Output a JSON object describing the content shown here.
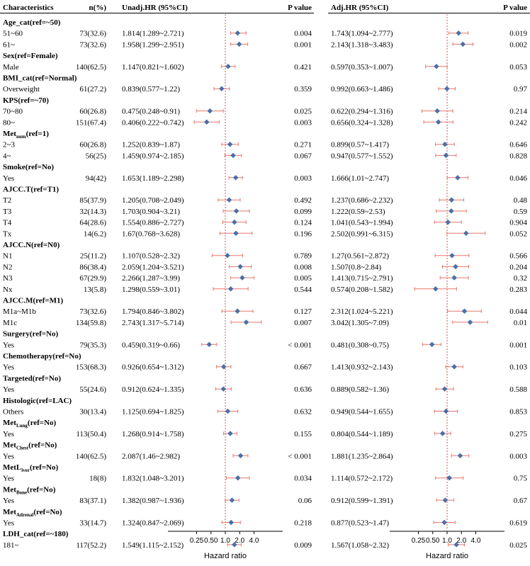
{
  "colors": {
    "marker": "#4a6fa5",
    "ci_line": "#e8776a",
    "ref_line": "#b0322a",
    "rule": "#000000"
  },
  "chart_data": {
    "type": "forest",
    "headers": {
      "characteristics": "Characteristics",
      "n": "n(%)",
      "unadj": "Unadj.HR (95%CI)",
      "p_left": "P value",
      "adj": "Adj.HR (95%CI)",
      "p_right": "P value"
    },
    "x_axis": {
      "label": "Hazard ratio",
      "scale": "log2",
      "ticks": [
        "0.25",
        "0.50",
        "1.0",
        "2.0",
        "4.0"
      ],
      "tick_values": [
        0.25,
        0.5,
        1,
        2,
        4
      ],
      "reference": 1
    },
    "rows": [
      {
        "type": "header",
        "label": "Age_cat(ref=~50)"
      },
      {
        "type": "data",
        "label": "51~60",
        "n": "73(32.6)",
        "unadj_text": "1.814(1.289~2.721)",
        "unadj_p": "0.004",
        "adj_text": "1.743(1.094~2.777)",
        "adj_p": "0.019",
        "unadj": [
          1.814,
          1.289,
          2.721
        ],
        "adj": [
          1.743,
          1.094,
          2.777
        ]
      },
      {
        "type": "data",
        "label": "61~",
        "n": "73(32.6)",
        "unadj_text": "1.958(1.299~2.951)",
        "unadj_p": "0.001",
        "adj_text": "2.143(1.318~3.483)",
        "adj_p": "0.002",
        "unadj": [
          1.958,
          1.299,
          2.951
        ],
        "adj": [
          2.143,
          1.318,
          3.483
        ]
      },
      {
        "type": "header",
        "label": "Sex(ref=Female)"
      },
      {
        "type": "data",
        "label": "Male",
        "n": "140(62.5)",
        "unadj_text": "1.147(0.821~1.602)",
        "unadj_p": "0.421",
        "adj_text": "0.597(0.353~1.007)",
        "adj_p": "0.053",
        "unadj": [
          1.147,
          0.821,
          1.602
        ],
        "adj": [
          0.597,
          0.353,
          1.007
        ]
      },
      {
        "type": "header",
        "label": "BMI_cat(ref=Normal)"
      },
      {
        "type": "data",
        "label": "Overweight",
        "n": "61(27.2)",
        "unadj_text": "0.839(0.577~1.22)",
        "unadj_p": "0.359",
        "adj_text": "0.992(0.663~1.486)",
        "adj_p": "0.97",
        "unadj": [
          0.839,
          0.577,
          1.22
        ],
        "adj": [
          0.992,
          0.663,
          1.486
        ]
      },
      {
        "type": "header",
        "label": "KPS(ref=~70)"
      },
      {
        "type": "data",
        "label": "70~80",
        "n": "60(26.8)",
        "unadj_text": "0.475(0.248~0.91)",
        "unadj_p": "0.025",
        "adj_text": "0.622(0.294~1.316)",
        "adj_p": "0.214",
        "unadj": [
          0.475,
          0.248,
          0.91
        ],
        "adj": [
          0.622,
          0.294,
          1.316
        ]
      },
      {
        "type": "data",
        "label": "80~",
        "n": "151(67.4)",
        "unadj_text": "0.406(0.222~0.742)",
        "unadj_p": "0.003",
        "adj_text": "0.656(0.324~1.328)",
        "adj_p": "0.242",
        "unadj": [
          0.406,
          0.222,
          0.742
        ],
        "adj": [
          0.656,
          0.324,
          1.328
        ]
      },
      {
        "type": "header",
        "label": "Met",
        "sub": "num",
        "suffix": "(ref=1)"
      },
      {
        "type": "data",
        "label": "2~3",
        "n": "60(26.8)",
        "unadj_text": "1.252(0.839~1.87)",
        "unadj_p": "0.271",
        "adj_text": "0.899(0.57~1.417)",
        "adj_p": "0.646",
        "unadj": [
          1.252,
          0.839,
          1.87
        ],
        "adj": [
          0.899,
          0.57,
          1.417
        ]
      },
      {
        "type": "data",
        "label": "4~",
        "n": "56(25)",
        "unadj_text": "1.459(0.974~2.185)",
        "unadj_p": "0.067",
        "adj_text": "0.947(0.577~1.552)",
        "adj_p": "0.828",
        "unadj": [
          1.459,
          0.974,
          2.185
        ],
        "adj": [
          0.947,
          0.577,
          1.552
        ]
      },
      {
        "type": "header",
        "label": "Smoke(ref=No)"
      },
      {
        "type": "data",
        "label": "Yes",
        "n": "94(42)",
        "unadj_text": "1.653(1.189~2.298)",
        "unadj_p": "0.003",
        "adj_text": "1.666(1.01~2.747)",
        "adj_p": "0.046",
        "unadj": [
          1.653,
          1.189,
          2.298
        ],
        "adj": [
          1.666,
          1.01,
          2.747
        ]
      },
      {
        "type": "header",
        "label": "AJCC.T(ref=T1)"
      },
      {
        "type": "data",
        "label": "T2",
        "n": "85(37.9)",
        "unadj_text": "1.205(0.708~2.049)",
        "unadj_p": "0.492",
        "adj_text": "1.237(0.686~2.232)",
        "adj_p": "0.48",
        "unadj": [
          1.205,
          0.708,
          2.049
        ],
        "adj": [
          1.237,
          0.686,
          2.232
        ]
      },
      {
        "type": "data",
        "label": "T3",
        "n": "32(14.3)",
        "unadj_text": "1.703(0.904~3.21)",
        "unadj_p": "0.099",
        "adj_text": "1.222(0.59~2.53)",
        "adj_p": "0.59",
        "unadj": [
          1.703,
          0.904,
          3.21
        ],
        "adj": [
          1.222,
          0.59,
          2.53
        ]
      },
      {
        "type": "data",
        "label": "T4",
        "n": "64(28.6)",
        "unadj_text": "1.554(0.886~2.727)",
        "unadj_p": "0.124",
        "adj_text": "1.041(0.543~1.994)",
        "adj_p": "0.904",
        "unadj": [
          1.554,
          0.886,
          2.727
        ],
        "adj": [
          1.041,
          0.543,
          1.994
        ]
      },
      {
        "type": "data",
        "label": "Tx",
        "n": "14(6.2)",
        "unadj_text": "1.67(0.768~3.628)",
        "unadj_p": "0.196",
        "adj_text": "2.502(0.991~6.315)",
        "adj_p": "0.052",
        "unadj": [
          1.67,
          0.768,
          3.628
        ],
        "adj": [
          2.502,
          0.991,
          6.315
        ]
      },
      {
        "type": "header",
        "label": "AJCC.N(ref=N0)"
      },
      {
        "type": "data",
        "label": "N1",
        "n": "25(11.2)",
        "unadj_text": "1.107(0.528~2.32)",
        "unadj_p": "0.789",
        "adj_text": "1.27(0.561~2.872)",
        "adj_p": "0.566",
        "unadj": [
          1.107,
          0.528,
          2.32
        ],
        "adj": [
          1.27,
          0.561,
          2.872
        ]
      },
      {
        "type": "data",
        "label": "N2",
        "n": "86(38.4)",
        "unadj_text": "2.059(1.204~3.521)",
        "unadj_p": "0.008",
        "adj_text": "1.507(0.8~2.84)",
        "adj_p": "0.204",
        "unadj": [
          2.059,
          1.204,
          3.521
        ],
        "adj": [
          1.507,
          0.8,
          2.84
        ]
      },
      {
        "type": "data",
        "label": "N3",
        "n": "67(29.9)",
        "unadj_text": "2.266(1.287~3.99)",
        "unadj_p": "0.005",
        "adj_text": "1.413(0.715~2.791)",
        "adj_p": "0.32",
        "unadj": [
          2.266,
          1.287,
          3.99
        ],
        "adj": [
          1.413,
          0.715,
          2.791
        ]
      },
      {
        "type": "data",
        "label": "Nx",
        "n": "13(5.8)",
        "unadj_text": "1.298(0.559~3.01)",
        "unadj_p": "0.544",
        "adj_text": "0.574(0.208~1.582)",
        "adj_p": "0.283",
        "unadj": [
          1.298,
          0.559,
          3.01
        ],
        "adj": [
          0.574,
          0.208,
          1.582
        ]
      },
      {
        "type": "header",
        "label": "AJCC.M(ref=M1)"
      },
      {
        "type": "data",
        "label": "M1a~M1b",
        "n": "73(32.6)",
        "unadj_text": "1.794(0.846~3.802)",
        "unadj_p": "0.127",
        "adj_text": "2.312(1.024~5.221)",
        "adj_p": "0.044",
        "unadj": [
          1.794,
          0.846,
          3.802
        ],
        "adj": [
          2.312,
          1.024,
          5.221
        ]
      },
      {
        "type": "data",
        "label": "M1c",
        "n": "134(59.8)",
        "unadj_text": "2.743(1.317~5.714)",
        "unadj_p": "0.007",
        "adj_text": "3.042(1.305~7.09)",
        "adj_p": "0.01",
        "unadj": [
          2.743,
          1.317,
          5.714
        ],
        "adj": [
          3.042,
          1.305,
          7.09
        ]
      },
      {
        "type": "header",
        "label": "Surgery(ref=No)"
      },
      {
        "type": "data",
        "label": "Yes",
        "n": "79(35.3)",
        "unadj_text": "0.459(0.319~0.66)",
        "unadj_p": "< 0.001",
        "adj_text": "0.481(0.308~0.75)",
        "adj_p": "0.001",
        "unadj": [
          0.459,
          0.319,
          0.66
        ],
        "adj": [
          0.481,
          0.308,
          0.75
        ]
      },
      {
        "type": "header",
        "label": "Chemotherapy(ref=No)"
      },
      {
        "type": "data",
        "label": "Yes",
        "n": "153(68.3)",
        "unadj_text": "0.926(0.654~1.312)",
        "unadj_p": "0.667",
        "adj_text": "1.413(0.932~2.143)",
        "adj_p": "0.103",
        "unadj": [
          0.926,
          0.654,
          1.312
        ],
        "adj": [
          1.413,
          0.932,
          2.143
        ]
      },
      {
        "type": "header",
        "label": "Targeted(ref=No)"
      },
      {
        "type": "data",
        "label": "Yes",
        "n": "55(24.6)",
        "unadj_text": "0.912(0.624~1.335)",
        "unadj_p": "0.636",
        "adj_text": "0.889(0.582~1.36)",
        "adj_p": "0.588",
        "unadj": [
          0.912,
          0.624,
          1.335
        ],
        "adj": [
          0.889,
          0.582,
          1.36
        ]
      },
      {
        "type": "header",
        "label": "Histologic(ref=LAC)"
      },
      {
        "type": "data",
        "label": "Others",
        "n": "30(13.4)",
        "unadj_text": "1.125(0.694~1.825)",
        "unadj_p": "0.632",
        "adj_text": "0.949(0.544~1.655)",
        "adj_p": "0.853",
        "unadj": [
          1.125,
          0.694,
          1.825
        ],
        "adj": [
          0.949,
          0.544,
          1.655
        ]
      },
      {
        "type": "header",
        "label": "Met",
        "sub": "Lung",
        "suffix": "(ref=No)"
      },
      {
        "type": "data",
        "label": "Yes",
        "n": "113(50.4)",
        "unadj_text": "1.268(0.914~1.758)",
        "unadj_p": "0.155",
        "adj_text": "0.804(0.544~1.189)",
        "adj_p": "0.275",
        "unadj": [
          1.268,
          0.914,
          1.758
        ],
        "adj": [
          0.804,
          0.544,
          1.189
        ]
      },
      {
        "type": "header",
        "label": "Met",
        "sub": "Chest",
        "suffix": "(ref=No)"
      },
      {
        "type": "data",
        "label": "Yes",
        "n": "140(62.5)",
        "unadj_text": "2.087(1.46~2.982)",
        "unadj_p": "< 0.001",
        "adj_text": "1.881(1.235~2.864)",
        "adj_p": "0.003",
        "unadj": [
          2.087,
          1.46,
          2.982
        ],
        "adj": [
          1.881,
          1.235,
          2.864
        ]
      },
      {
        "type": "header",
        "label": "MetL",
        "sub": "iver",
        "suffix": "(ref=No)"
      },
      {
        "type": "data",
        "label": "Yes",
        "n": "18(8)",
        "unadj_text": "1.832(1.048~3.201)",
        "unadj_p": "0.034",
        "adj_text": "1.114(0.572~2.172)",
        "adj_p": "0.75",
        "unadj": [
          1.832,
          1.048,
          3.201
        ],
        "adj": [
          1.114,
          0.572,
          2.172
        ]
      },
      {
        "type": "header",
        "label": "Met",
        "sub": "Bone",
        "suffix": "(ref=No)"
      },
      {
        "type": "data",
        "label": "Yes",
        "n": "83(37.1)",
        "unadj_text": "1.382(0.987~1.936)",
        "unadj_p": "0.06",
        "adj_text": "0.912(0.599~1.391)",
        "adj_p": "0.67",
        "unadj": [
          1.382,
          0.987,
          1.936
        ],
        "adj": [
          0.912,
          0.599,
          1.391
        ]
      },
      {
        "type": "header",
        "label": "Met",
        "sub": "Adrenal",
        "suffix": "(ref=No)"
      },
      {
        "type": "data",
        "label": "Yes",
        "n": "33(14.7)",
        "unadj_text": "1.324(0.847~2.069)",
        "unadj_p": "0.218",
        "adj_text": "0.877(0.523~1.47)",
        "adj_p": "0.619",
        "unadj": [
          1.324,
          0.847,
          2.069
        ],
        "adj": [
          0.877,
          0.523,
          1.47
        ]
      },
      {
        "type": "header",
        "label": "LDH_cat(ref=~180)"
      },
      {
        "type": "data",
        "label": "181~",
        "n": "117(52.2)",
        "unadj_text": "1.549(1.115~2.152)",
        "unadj_p": "0.009",
        "adj_text": "1.567(1.058~2.32)",
        "adj_p": "0.025",
        "unadj": [
          1.549,
          1.115,
          2.152
        ],
        "adj": [
          1.567,
          1.058,
          2.32
        ]
      }
    ]
  }
}
